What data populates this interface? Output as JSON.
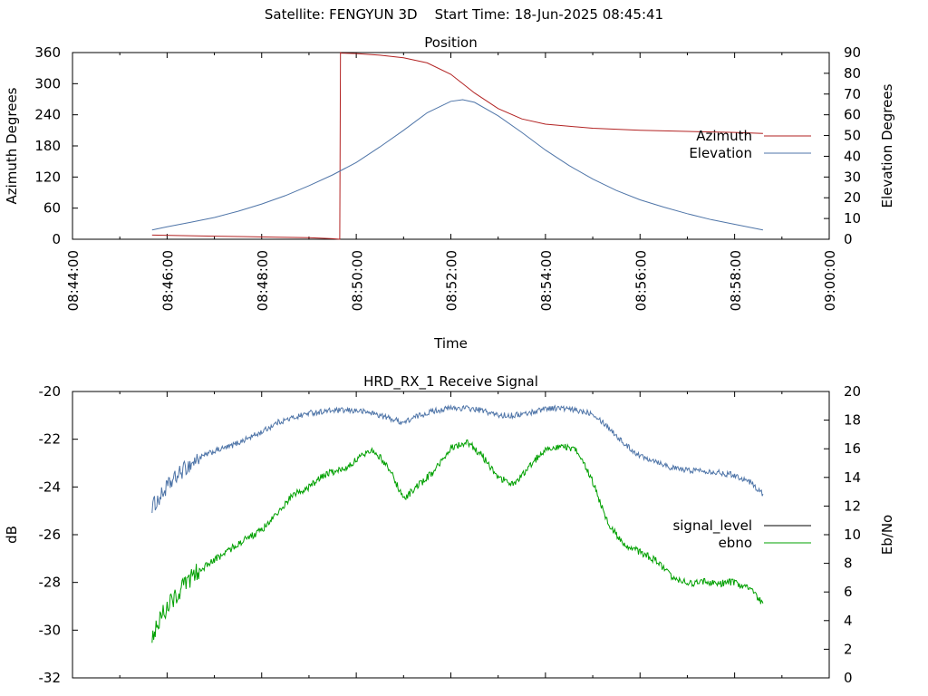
{
  "header": {
    "suptitle": "Satellite: FENGYUN 3D    Start Time: 18-Jun-2025 08:45:41"
  },
  "chart_data": [
    {
      "type": "line",
      "title": "Position",
      "xlabel": "Time",
      "ylabel": "Azimuth Degrees",
      "y2label": "Elevation Degrees",
      "xlim": [
        "08:44:00",
        "09:00:00"
      ],
      "xticks": [
        "08:44:00",
        "08:46:00",
        "08:48:00",
        "08:50:00",
        "08:52:00",
        "08:54:00",
        "08:56:00",
        "08:58:00",
        "09:00:00"
      ],
      "ylim": [
        0,
        360
      ],
      "yticks": [
        "0",
        "60",
        "120",
        "180",
        "240",
        "300",
        "360"
      ],
      "y2lim": [
        0,
        90
      ],
      "y2ticks": [
        "0",
        "10",
        "20",
        "30",
        "40",
        "50",
        "60",
        "70",
        "80",
        "90"
      ],
      "legend_position": "right",
      "series": [
        {
          "name": "Azimuth",
          "color": "#b22222",
          "axis": "left",
          "x": [
            "08:45:41",
            "08:46:20",
            "08:47:00",
            "08:47:40",
            "08:48:20",
            "08:49:00",
            "08:49:30",
            "08:49:39",
            "08:49:40",
            "08:49:41",
            "08:50:00",
            "08:50:30",
            "08:51:00",
            "08:51:30",
            "08:52:00",
            "08:52:30",
            "08:53:00",
            "08:53:30",
            "08:54:00",
            "08:55:00",
            "08:56:00",
            "08:57:00",
            "08:58:00",
            "08:58:36"
          ],
          "y": [
            8,
            7,
            6,
            5,
            4,
            3,
            1,
            0,
            360,
            359,
            358,
            355,
            350,
            340,
            318,
            282,
            252,
            232,
            222,
            214,
            210,
            208,
            206,
            204
          ]
        },
        {
          "name": "Elevation",
          "color": "#4f75a8",
          "axis": "right",
          "x": [
            "08:45:41",
            "08:46:00",
            "08:46:30",
            "08:47:00",
            "08:47:30",
            "08:48:00",
            "08:48:30",
            "08:49:00",
            "08:49:30",
            "08:50:00",
            "08:50:30",
            "08:51:00",
            "08:51:30",
            "08:52:00",
            "08:52:15",
            "08:52:30",
            "08:53:00",
            "08:53:30",
            "08:54:00",
            "08:54:30",
            "08:55:00",
            "08:55:30",
            "08:56:00",
            "08:56:30",
            "08:57:00",
            "08:57:30",
            "08:58:00",
            "08:58:36"
          ],
          "y": [
            4.5,
            6,
            8.2,
            10.5,
            13.5,
            17,
            21,
            25.8,
            31,
            37,
            44.5,
            52.5,
            61,
            66.5,
            67.3,
            66,
            59.5,
            51.5,
            43,
            35.5,
            29,
            23.5,
            19,
            15.5,
            12.3,
            9.5,
            7.2,
            4.5
          ]
        }
      ]
    },
    {
      "type": "line",
      "title": "HRD_RX_1 Receive Signal",
      "xlabel": "",
      "ylabel": "dB",
      "y2label": "Eb/No",
      "xlim": [
        "08:44:00",
        "09:00:00"
      ],
      "ylim": [
        -32,
        -20
      ],
      "yticks": [
        "-32",
        "-30",
        "-28",
        "-26",
        "-24",
        "-22",
        "-20"
      ],
      "y2lim": [
        0,
        20
      ],
      "y2ticks": [
        "0",
        "2",
        "4",
        "6",
        "8",
        "10",
        "12",
        "14",
        "16",
        "18",
        "20"
      ],
      "legend_position": "right",
      "series": [
        {
          "name": "signal_level",
          "color": "#4f75a8",
          "axis": "left",
          "x": [
            "08:45:41",
            "08:45:50",
            "08:46:00",
            "08:46:20",
            "08:46:40",
            "08:47:00",
            "08:47:20",
            "08:47:40",
            "08:48:00",
            "08:48:20",
            "08:48:40",
            "08:49:00",
            "08:49:30",
            "08:50:00",
            "08:50:20",
            "08:50:40",
            "08:51:00",
            "08:51:20",
            "08:51:40",
            "08:52:00",
            "08:52:20",
            "08:52:40",
            "08:53:00",
            "08:53:20",
            "08:53:40",
            "08:54:00",
            "08:54:20",
            "08:54:40",
            "08:55:00",
            "08:55:20",
            "08:55:40",
            "08:56:00",
            "08:56:20",
            "08:56:40",
            "08:57:00",
            "08:57:20",
            "08:57:40",
            "08:58:00",
            "08:58:20",
            "08:58:36"
          ],
          "y": [
            -24.8,
            -24.5,
            -24.0,
            -23.3,
            -22.8,
            -22.5,
            -22.3,
            -22.0,
            -21.7,
            -21.3,
            -21.1,
            -20.9,
            -20.8,
            -20.8,
            -20.9,
            -21.1,
            -21.3,
            -21.0,
            -20.8,
            -20.7,
            -20.7,
            -20.8,
            -21.0,
            -21.0,
            -20.9,
            -20.7,
            -20.7,
            -20.8,
            -20.9,
            -21.5,
            -22.2,
            -22.7,
            -22.9,
            -23.2,
            -23.3,
            -23.3,
            -23.4,
            -23.5,
            -23.8,
            -24.3
          ]
        },
        {
          "name": "ebno",
          "color": "#00a000",
          "axis": "right",
          "x": [
            "08:45:41",
            "08:45:50",
            "08:46:00",
            "08:46:20",
            "08:46:40",
            "08:47:00",
            "08:47:20",
            "08:47:40",
            "08:48:00",
            "08:48:20",
            "08:48:40",
            "08:49:00",
            "08:49:20",
            "08:49:40",
            "08:50:00",
            "08:50:20",
            "08:50:40",
            "08:51:00",
            "08:51:20",
            "08:51:40",
            "08:52:00",
            "08:52:20",
            "08:52:40",
            "08:53:00",
            "08:53:20",
            "08:53:40",
            "08:54:00",
            "08:54:20",
            "08:54:40",
            "08:55:00",
            "08:55:20",
            "08:55:40",
            "08:56:00",
            "08:56:20",
            "08:56:40",
            "08:57:00",
            "08:57:20",
            "08:57:40",
            "08:58:00",
            "08:58:20",
            "08:58:36"
          ],
          "y": [
            3.0,
            4.0,
            5.0,
            6.3,
            7.5,
            8.2,
            9.0,
            9.7,
            10.3,
            11.5,
            12.8,
            13.3,
            14.2,
            14.5,
            15.2,
            16.0,
            14.8,
            12.5,
            13.5,
            14.5,
            16.0,
            16.5,
            15.5,
            14.0,
            13.5,
            14.8,
            16.0,
            16.2,
            15.8,
            13.7,
            10.7,
            9.3,
            8.8,
            8.2,
            7.0,
            6.6,
            6.7,
            6.6,
            6.7,
            6.2,
            5.2
          ]
        }
      ]
    }
  ]
}
